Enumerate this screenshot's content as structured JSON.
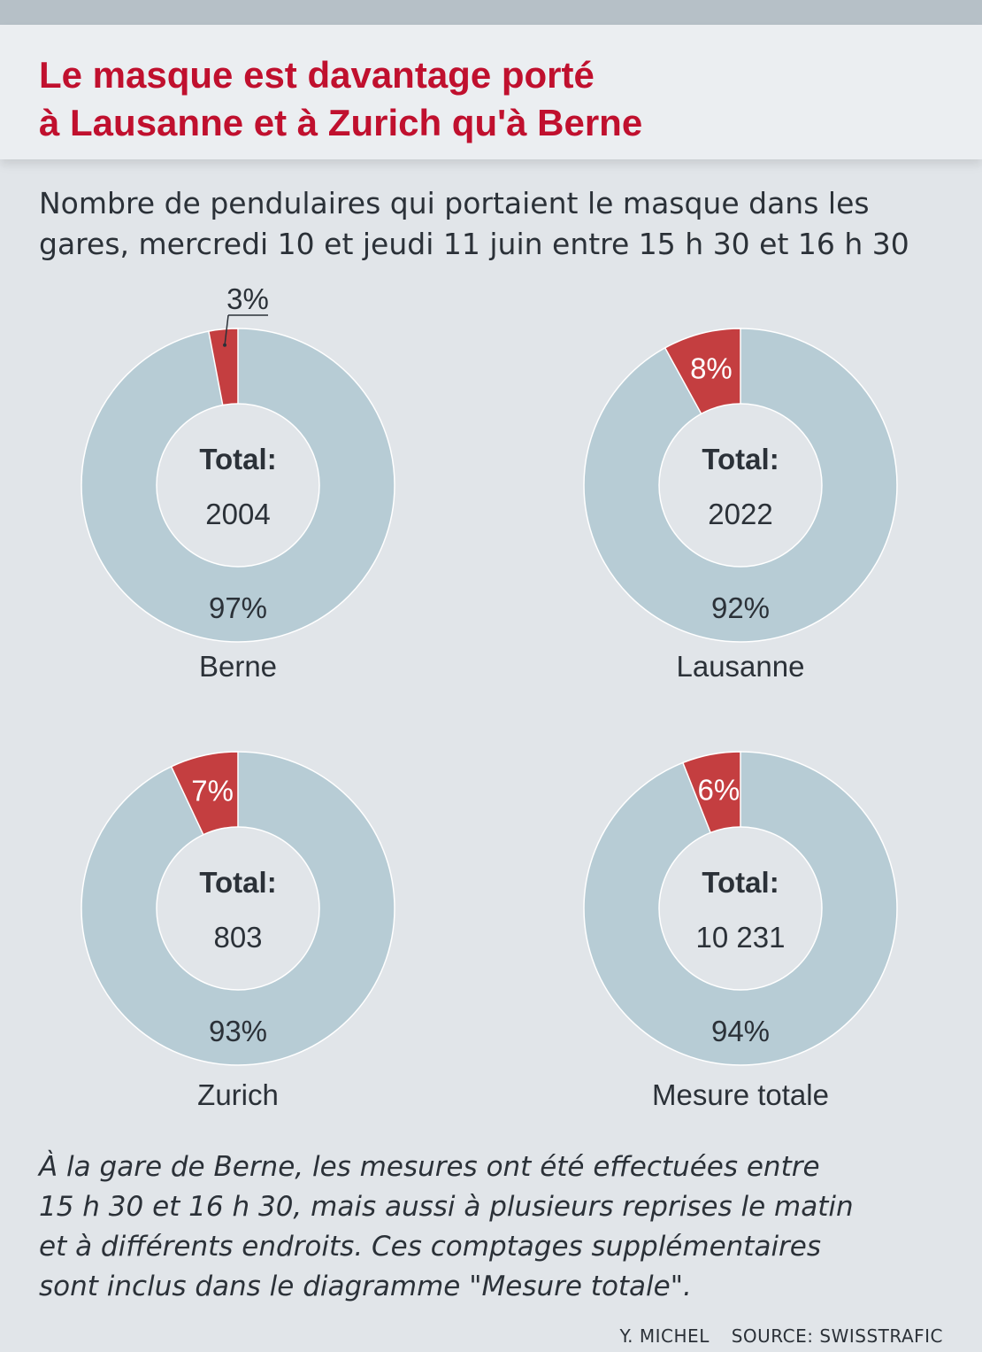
{
  "header": {
    "title_line1": "Le masque est davantage porté",
    "title_line2": "à Lausanne et à Zurich qu'à Berne",
    "subtitle_line1": "Nombre de pendulaires qui portaient le masque dans les",
    "subtitle_line2": "gares, mercredi 10 et jeudi 11 juin entre 15 h 30 et 16 h 30"
  },
  "colors": {
    "mask": "#c43e40",
    "no_mask": "#b7ccd5",
    "hole": "#e1e5e9",
    "title": "#c0102e",
    "text": "#2b3138"
  },
  "chart_data": [
    {
      "type": "pie",
      "name": "Berne",
      "total_label": "Total:",
      "total": "2004",
      "slices": [
        {
          "value": 3,
          "label": "3%"
        },
        {
          "value": 97,
          "label": "97%"
        }
      ]
    },
    {
      "type": "pie",
      "name": "Lausanne",
      "total_label": "Total:",
      "total": "2022",
      "slices": [
        {
          "value": 8,
          "label": "8%"
        },
        {
          "value": 92,
          "label": "92%"
        }
      ]
    },
    {
      "type": "pie",
      "name": "Zurich",
      "total_label": "Total:",
      "total": "803",
      "slices": [
        {
          "value": 7,
          "label": "7%"
        },
        {
          "value": 93,
          "label": "93%"
        }
      ]
    },
    {
      "type": "pie",
      "name": "Mesure totale",
      "total_label": "Total:",
      "total": "10 231",
      "slices": [
        {
          "value": 6,
          "label": "6%"
        },
        {
          "value": 94,
          "label": "94%"
        }
      ]
    }
  ],
  "note": {
    "line1": "À la gare de Berne, les mesures ont été effectuées entre",
    "line2": "15 h 30 et 16 h 30, mais aussi à plusieurs reprises le matin",
    "line3": "et à différents endroits. Ces comptages supplémentaires",
    "line4": "sont inclus dans le diagramme \"Mesure totale\"."
  },
  "credit": {
    "author": "Y. MICHEL",
    "source": "SOURCE: SWISSTRAFIC"
  }
}
